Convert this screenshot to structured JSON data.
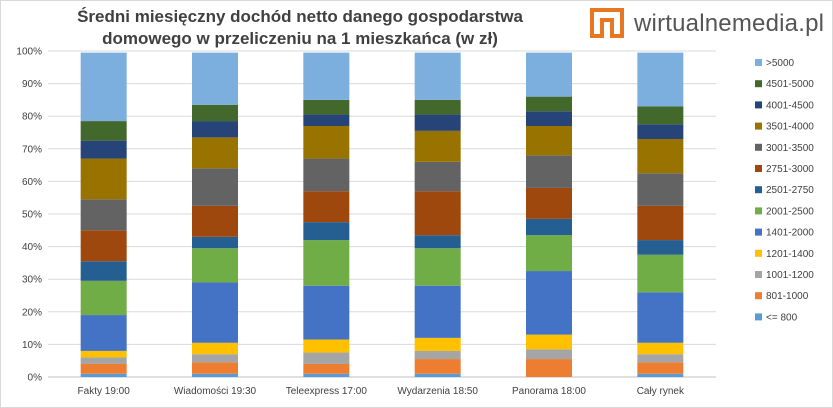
{
  "brand": {
    "name": "wirtualnemedia.pl"
  },
  "chart_data": {
    "type": "bar",
    "stacked": true,
    "percent": true,
    "title": "Średni miesięczny dochód netto danego gospodarstwa domowego w przeliczeniu na 1 mieszkańca (w zł)",
    "xlabel": "",
    "ylabel": "",
    "ylim": [
      0,
      100
    ],
    "yticks": [
      "0%",
      "10%",
      "20%",
      "30%",
      "40%",
      "50%",
      "60%",
      "70%",
      "80%",
      "90%",
      "100%"
    ],
    "categories": [
      "Fakty 19:00",
      "Wiadomości 19:30",
      "Teleexpress 17:00",
      "Wydarzenia 18:50",
      "Panorama 18:00",
      "Cały rynek"
    ],
    "series": [
      {
        "name": "<= 800",
        "color": "#5B9BD5",
        "values": [
          1,
          1,
          1,
          1,
          0,
          1
        ]
      },
      {
        "name": "801-1000",
        "color": "#ED7D31",
        "values": [
          3,
          3.5,
          3,
          4.5,
          5.5,
          3.5
        ]
      },
      {
        "name": "1001-1200",
        "color": "#A5A5A5",
        "values": [
          2,
          2.5,
          3.5,
          2.5,
          3,
          2.5
        ]
      },
      {
        "name": "1201-1400",
        "color": "#FFC000",
        "values": [
          2,
          3.5,
          4,
          4,
          4.5,
          3.5
        ]
      },
      {
        "name": "1401-2000",
        "color": "#4472C4",
        "values": [
          11,
          18.5,
          16.5,
          16,
          19.5,
          15.5
        ]
      },
      {
        "name": "2001-2500",
        "color": "#70AD47",
        "values": [
          10.5,
          10.5,
          14,
          11.5,
          11,
          11.5
        ]
      },
      {
        "name": "2501-2750",
        "color": "#255E91",
        "values": [
          6,
          3.5,
          5.5,
          4,
          5,
          4.5
        ]
      },
      {
        "name": "2751-3000",
        "color": "#9E480E",
        "values": [
          9.5,
          9.5,
          9.5,
          13.5,
          9.5,
          10.5
        ]
      },
      {
        "name": "3001-3500",
        "color": "#636363",
        "values": [
          9.5,
          11.5,
          10,
          9,
          10,
          10
        ]
      },
      {
        "name": "3501-4000",
        "color": "#997300",
        "values": [
          12.5,
          9.5,
          10,
          9.5,
          9,
          10.5
        ]
      },
      {
        "name": "4001-4500",
        "color": "#264478",
        "values": [
          5.5,
          5,
          3.5,
          5,
          4.5,
          4.5
        ]
      },
      {
        "name": "4501-5000",
        "color": "#43682B",
        "values": [
          6,
          5,
          4.5,
          4.5,
          4.5,
          5.5
        ]
      },
      {
        "name": ">5000",
        "color": "#7CAFDD",
        "values": [
          21,
          16,
          14.5,
          14.5,
          13.5,
          16.5
        ]
      }
    ],
    "legend_position": "right"
  }
}
